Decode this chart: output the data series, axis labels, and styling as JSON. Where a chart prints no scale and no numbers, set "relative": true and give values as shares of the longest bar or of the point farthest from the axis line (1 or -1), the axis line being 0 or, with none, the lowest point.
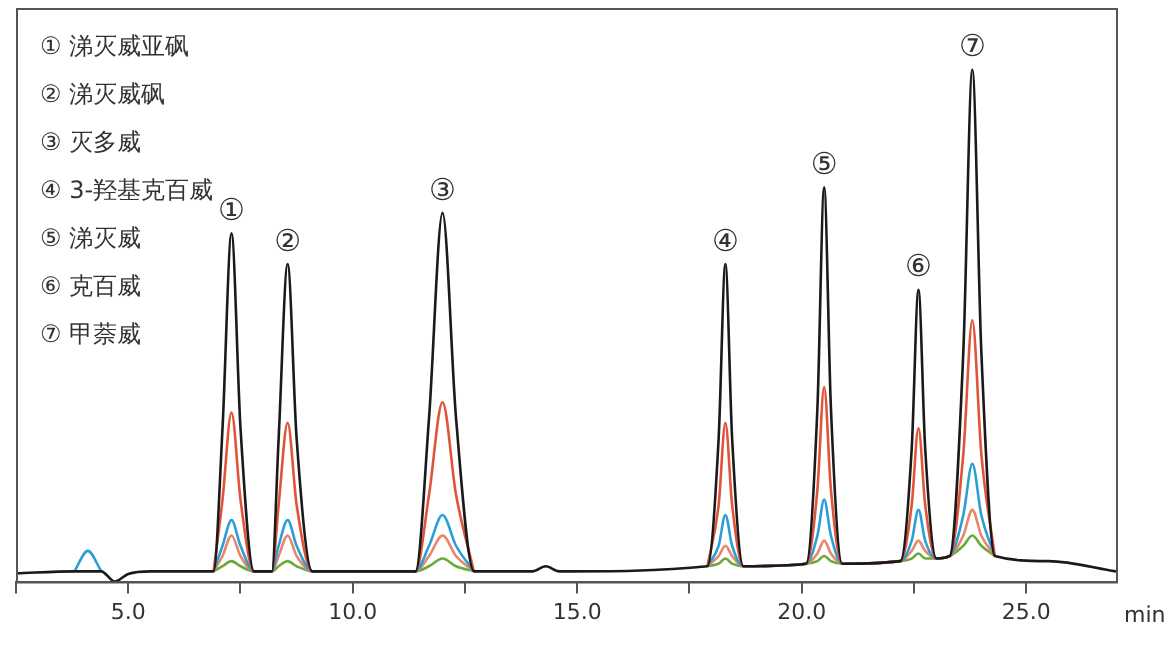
{
  "chart_data": {
    "type": "line",
    "relative": true,
    "xlabel": "min",
    "xlim": [
      2.5,
      27
    ],
    "xticks": [
      {
        "value": 2.5,
        "label": null
      },
      {
        "value": 5,
        "label": "5.0"
      },
      {
        "value": 7.5,
        "label": null
      },
      {
        "value": 10,
        "label": "10.0"
      },
      {
        "value": 12.5,
        "label": null
      },
      {
        "value": 15,
        "label": "15.0"
      },
      {
        "value": 17.5,
        "label": null
      },
      {
        "value": 20,
        "label": "20.0"
      },
      {
        "value": 22.5,
        "label": null
      },
      {
        "value": 25,
        "label": "25.0"
      }
    ],
    "x": [
      2.5,
      3.8,
      4.1,
      4.4,
      4.7,
      5.0,
      5.5,
      6.9,
      7.1,
      7.3,
      7.5,
      7.8,
      8.2,
      8.35,
      8.55,
      8.75,
      9.1,
      11.4,
      11.7,
      12.0,
      12.3,
      12.7,
      14.0,
      14.3,
      14.6,
      17.9,
      18.15,
      18.3,
      18.45,
      18.7,
      20.1,
      20.35,
      20.5,
      20.65,
      20.9,
      22.2,
      22.45,
      22.6,
      22.75,
      23.0,
      23.3,
      23.6,
      23.8,
      24.0,
      24.3,
      25.5,
      27.0
    ],
    "series": [
      {
        "color": "#6aaa3a",
        "values": [
          null,
          null,
          null,
          null,
          null,
          null,
          null,
          0.02,
          0.03,
          0.04,
          0.03,
          0.02,
          0.02,
          0.03,
          0.04,
          0.03,
          0.02,
          0.02,
          0.03,
          0.045,
          0.03,
          0.02,
          null,
          null,
          null,
          0.03,
          0.035,
          0.045,
          0.035,
          0.03,
          0.035,
          0.04,
          0.05,
          0.04,
          0.035,
          0.04,
          0.045,
          0.055,
          0.045,
          0.045,
          0.05,
          0.07,
          0.09,
          0.07,
          0.05,
          null,
          null
        ]
      },
      {
        "color": "#e8866a",
        "values": [
          null,
          null,
          null,
          null,
          null,
          null,
          null,
          0.02,
          0.05,
          0.09,
          0.05,
          0.02,
          0.02,
          0.05,
          0.09,
          0.05,
          0.02,
          0.02,
          0.05,
          0.09,
          0.05,
          0.02,
          null,
          null,
          null,
          0.03,
          0.05,
          0.07,
          0.05,
          0.03,
          0.035,
          0.055,
          0.08,
          0.055,
          0.035,
          0.04,
          0.06,
          0.08,
          0.06,
          0.045,
          0.05,
          0.09,
          0.14,
          0.09,
          0.05,
          null,
          null
        ]
      },
      {
        "color": "#2a9fd6",
        "values": [
          null,
          0.02,
          0.06,
          0.02,
          null,
          null,
          null,
          0.02,
          0.07,
          0.12,
          0.07,
          0.02,
          0.02,
          0.07,
          0.12,
          0.07,
          0.02,
          0.02,
          0.07,
          0.13,
          0.07,
          0.02,
          null,
          null,
          null,
          0.03,
          0.07,
          0.13,
          0.07,
          0.03,
          0.035,
          0.09,
          0.16,
          0.09,
          0.035,
          0.04,
          0.08,
          0.14,
          0.08,
          0.045,
          0.05,
          0.13,
          0.23,
          0.13,
          0.05,
          null,
          null
        ]
      },
      {
        "color": "#e0553a",
        "values": [
          null,
          null,
          null,
          null,
          null,
          null,
          null,
          0.02,
          0.16,
          0.33,
          0.16,
          0.02,
          0.02,
          0.15,
          0.31,
          0.15,
          0.02,
          0.02,
          0.17,
          0.35,
          0.17,
          0.02,
          null,
          null,
          null,
          0.03,
          0.15,
          0.31,
          0.15,
          0.03,
          0.035,
          0.18,
          0.38,
          0.18,
          0.035,
          0.04,
          0.15,
          0.3,
          0.15,
          0.045,
          0.05,
          0.25,
          0.51,
          0.25,
          0.05,
          null,
          null
        ]
      },
      {
        "color": "#1a1a1a",
        "values": [
          0.016,
          0.02,
          0.02,
          0.02,
          0,
          0.015,
          0.02,
          0.02,
          0.3,
          0.68,
          0.3,
          0.02,
          0.02,
          0.28,
          0.62,
          0.28,
          0.02,
          0.02,
          0.32,
          0.72,
          0.32,
          0.02,
          0.02,
          0.03,
          0.02,
          0.03,
          0.28,
          0.62,
          0.28,
          0.03,
          0.035,
          0.34,
          0.77,
          0.34,
          0.035,
          0.04,
          0.26,
          0.57,
          0.26,
          0.045,
          0.05,
          0.45,
          1.0,
          0.45,
          0.05,
          0.04,
          0.02
        ]
      }
    ],
    "marker": "none",
    "line_style": "solid",
    "grid": false,
    "legend": false,
    "annotations": [
      "① 涕灭威亚砜",
      "② 涕灭威砜",
      "③ 灭多威",
      "④ 3-羟基克百威",
      "⑤ 涕灭威",
      "⑥ 克百威",
      "⑦ 甲萘威",
      {
        "text": "①",
        "x": 7.3,
        "y": 0.68
      },
      {
        "text": "②",
        "x": 8.55,
        "y": 0.62
      },
      {
        "text": "③",
        "x": 12.0,
        "y": 0.72
      },
      {
        "text": "④",
        "x": 18.3,
        "y": 0.62
      },
      {
        "text": "⑤",
        "x": 20.5,
        "y": 0.77
      },
      {
        "text": "⑥",
        "x": 22.6,
        "y": 0.57
      },
      {
        "text": "⑦",
        "x": 23.8,
        "y": 1.0
      }
    ]
  }
}
